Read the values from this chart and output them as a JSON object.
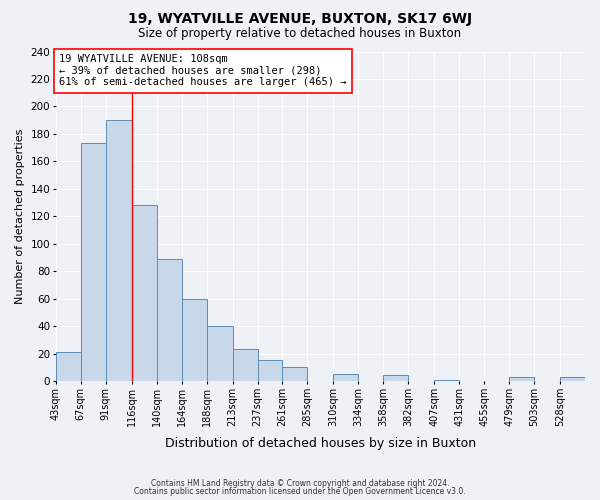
{
  "title": "19, WYATVILLE AVENUE, BUXTON, SK17 6WJ",
  "subtitle": "Size of property relative to detached houses in Buxton",
  "xlabel": "Distribution of detached houses by size in Buxton",
  "ylabel": "Number of detached properties",
  "bin_labels": [
    "43sqm",
    "67sqm",
    "91sqm",
    "116sqm",
    "140sqm",
    "164sqm",
    "188sqm",
    "213sqm",
    "237sqm",
    "261sqm",
    "285sqm",
    "310sqm",
    "334sqm",
    "358sqm",
    "382sqm",
    "407sqm",
    "431sqm",
    "455sqm",
    "479sqm",
    "503sqm",
    "528sqm"
  ],
  "bin_edges": [
    43,
    67,
    91,
    116,
    140,
    164,
    188,
    213,
    237,
    261,
    285,
    310,
    334,
    358,
    382,
    407,
    431,
    455,
    479,
    503,
    528,
    552
  ],
  "bar_values": [
    21,
    173,
    190,
    128,
    89,
    60,
    40,
    23,
    15,
    10,
    0,
    5,
    0,
    4,
    0,
    1,
    0,
    0,
    3,
    0,
    3
  ],
  "bar_color": "#c8d8e8",
  "bar_edge_color": "#5b8db8",
  "ylim": [
    0,
    240
  ],
  "yticks": [
    0,
    20,
    40,
    60,
    80,
    100,
    120,
    140,
    160,
    180,
    200,
    220,
    240
  ],
  "red_line_x": 116,
  "annotation_title": "19 WYATVILLE AVENUE: 108sqm",
  "annotation_line1": "← 39% of detached houses are smaller (298)",
  "annotation_line2": "61% of semi-detached houses are larger (465) →",
  "footer1": "Contains HM Land Registry data © Crown copyright and database right 2024.",
  "footer2": "Contains public sector information licensed under the Open Government Licence v3.0.",
  "background_color": "#eef2f7",
  "grid_color": "#ffffff"
}
